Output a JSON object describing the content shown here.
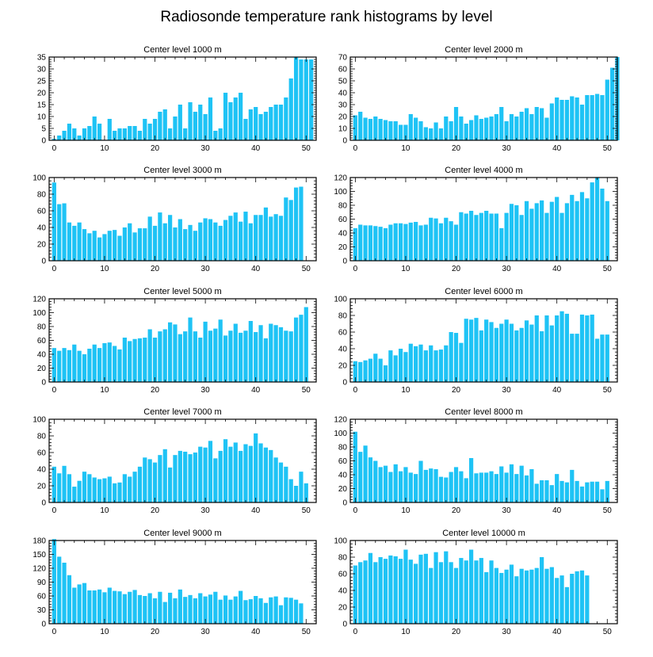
{
  "figure": {
    "title": "Radiosonde temperature rank histograms by level",
    "bar_color": "#1ec3f5",
    "axis_color": "#000000"
  },
  "chart_data": [
    {
      "type": "bar",
      "title": "Center level 1000 m",
      "xlim": [
        -1,
        52
      ],
      "ylim": [
        0,
        35
      ],
      "xticks": [
        0,
        10,
        20,
        30,
        40,
        50
      ],
      "yticks": [
        0,
        5,
        10,
        15,
        20,
        25,
        30,
        35
      ],
      "values": [
        0.6,
        2,
        4,
        7,
        5,
        2,
        5,
        6,
        10,
        7,
        0.2,
        9,
        4,
        5,
        5,
        6,
        6,
        4,
        9,
        7,
        9,
        12,
        13,
        5,
        10,
        15,
        5,
        16,
        12,
        15,
        11,
        18,
        4,
        5,
        20,
        16,
        18,
        20,
        9,
        13,
        14,
        11,
        12,
        14,
        15,
        15,
        18,
        26,
        35,
        34,
        34,
        34
      ]
    },
    {
      "type": "bar",
      "title": "Center level 2000 m",
      "xlim": [
        -1,
        52
      ],
      "ylim": [
        0,
        70
      ],
      "xticks": [
        0,
        10,
        20,
        30,
        40,
        50
      ],
      "yticks": [
        0,
        10,
        20,
        30,
        40,
        50,
        60,
        70
      ],
      "values": [
        21,
        24,
        19,
        18,
        20,
        18,
        17,
        16,
        16,
        13,
        13,
        22,
        19,
        16,
        11,
        10,
        15,
        10,
        20,
        16,
        28,
        20,
        14,
        17,
        21,
        18,
        19,
        20,
        22,
        28,
        16,
        22,
        20,
        24,
        27,
        22,
        28,
        27,
        19,
        31,
        36,
        34,
        34,
        37,
        36,
        30,
        38,
        38,
        39,
        38,
        51,
        61,
        70
      ]
    },
    {
      "type": "bar",
      "title": "Center level 3000 m",
      "xlim": [
        -1,
        52
      ],
      "ylim": [
        0,
        100
      ],
      "xticks": [
        0,
        10,
        20,
        30,
        40,
        50
      ],
      "yticks": [
        0,
        20,
        40,
        60,
        80,
        100
      ],
      "values": [
        94,
        68,
        69,
        46,
        42,
        46,
        38,
        33,
        36,
        28,
        32,
        36,
        37,
        30,
        40,
        45,
        34,
        39,
        39,
        53,
        42,
        58,
        45,
        55,
        40,
        50,
        38,
        43,
        36,
        46,
        51,
        50,
        46,
        42,
        49,
        54,
        58,
        47,
        59,
        45,
        55,
        55,
        64,
        53,
        56,
        54,
        76,
        73,
        88,
        89
      ]
    },
    {
      "type": "bar",
      "title": "Center level 4000 m",
      "xlim": [
        -1,
        52
      ],
      "ylim": [
        0,
        120
      ],
      "xticks": [
        0,
        10,
        20,
        30,
        40,
        50
      ],
      "yticks": [
        0,
        20,
        40,
        60,
        80,
        100,
        120
      ],
      "values": [
        47,
        52,
        51,
        51,
        50,
        49,
        47,
        52,
        54,
        54,
        53,
        55,
        56,
        51,
        52,
        62,
        61,
        54,
        62,
        57,
        52,
        70,
        68,
        72,
        66,
        69,
        72,
        68,
        68,
        47,
        69,
        82,
        80,
        66,
        86,
        75,
        83,
        87,
        69,
        85,
        92,
        69,
        83,
        95,
        86,
        99,
        90,
        113,
        120,
        104,
        86
      ]
    },
    {
      "type": "bar",
      "title": "Center level 5000 m",
      "xlim": [
        -1,
        52
      ],
      "ylim": [
        0,
        120
      ],
      "xticks": [
        0,
        10,
        20,
        30,
        40,
        50
      ],
      "yticks": [
        0,
        20,
        40,
        60,
        80,
        100,
        120
      ],
      "values": [
        49,
        45,
        49,
        46,
        54,
        45,
        40,
        48,
        54,
        49,
        56,
        57,
        52,
        47,
        64,
        59,
        62,
        63,
        64,
        76,
        64,
        73,
        76,
        86,
        83,
        69,
        73,
        93,
        73,
        64,
        87,
        74,
        77,
        90,
        67,
        74,
        84,
        71,
        74,
        88,
        72,
        82,
        63,
        84,
        82,
        79,
        74,
        73,
        93,
        97,
        108
      ]
    },
    {
      "type": "bar",
      "title": "Center level 6000 m",
      "xlim": [
        -1,
        52
      ],
      "ylim": [
        0,
        100
      ],
      "xticks": [
        0,
        10,
        20,
        30,
        40,
        50
      ],
      "yticks": [
        0,
        20,
        40,
        60,
        80,
        100
      ],
      "values": [
        25,
        24,
        26,
        28,
        34,
        28,
        20,
        38,
        32,
        40,
        36,
        46,
        43,
        45,
        38,
        44,
        38,
        39,
        44,
        60,
        59,
        47,
        76,
        75,
        77,
        62,
        75,
        72,
        65,
        70,
        75,
        70,
        62,
        65,
        74,
        69,
        80,
        61,
        80,
        68,
        80,
        85,
        82,
        58,
        58,
        81,
        80,
        81,
        52,
        57,
        57
      ]
    },
    {
      "type": "bar",
      "title": "Center level 7000 m",
      "xlim": [
        -1,
        52
      ],
      "ylim": [
        0,
        100
      ],
      "xticks": [
        0,
        10,
        20,
        30,
        40,
        50
      ],
      "yticks": [
        0,
        20,
        40,
        60,
        80,
        100
      ],
      "values": [
        43,
        35,
        44,
        34,
        19,
        26,
        37,
        34,
        30,
        28,
        29,
        31,
        23,
        24,
        34,
        31,
        37,
        43,
        54,
        52,
        48,
        57,
        64,
        42,
        57,
        62,
        61,
        58,
        60,
        67,
        66,
        74,
        53,
        62,
        76,
        67,
        72,
        62,
        70,
        68,
        83,
        71,
        66,
        63,
        54,
        48,
        43,
        28,
        20,
        37,
        23
      ]
    },
    {
      "type": "bar",
      "title": "Center level 8000 m",
      "xlim": [
        -1,
        52
      ],
      "ylim": [
        0,
        120
      ],
      "xticks": [
        0,
        10,
        20,
        30,
        40,
        50
      ],
      "yticks": [
        0,
        20,
        40,
        60,
        80,
        100,
        120
      ],
      "values": [
        102,
        73,
        82,
        65,
        60,
        51,
        53,
        44,
        55,
        45,
        51,
        43,
        41,
        60,
        47,
        49,
        48,
        37,
        36,
        44,
        51,
        45,
        35,
        64,
        42,
        43,
        43,
        45,
        41,
        52,
        43,
        55,
        41,
        53,
        39,
        48,
        27,
        32,
        32,
        25,
        41,
        31,
        29,
        47,
        31,
        23,
        29,
        30,
        30,
        19,
        31
      ]
    },
    {
      "type": "bar",
      "title": "Center level 9000 m",
      "xlim": [
        -1,
        52
      ],
      "ylim": [
        0,
        180
      ],
      "xticks": [
        0,
        10,
        20,
        30,
        40,
        50
      ],
      "yticks": [
        0,
        30,
        60,
        90,
        120,
        150,
        180
      ],
      "values": [
        183,
        145,
        132,
        105,
        78,
        85,
        88,
        72,
        72,
        74,
        68,
        78,
        71,
        70,
        64,
        69,
        73,
        62,
        60,
        66,
        55,
        69,
        47,
        67,
        55,
        74,
        58,
        62,
        55,
        66,
        59,
        63,
        69,
        52,
        61,
        52,
        59,
        71,
        51,
        53,
        60,
        55,
        45,
        57,
        59,
        40,
        57,
        56,
        52,
        44
      ]
    },
    {
      "type": "bar",
      "title": "Center level 10000 m",
      "xlim": [
        -1,
        52
      ],
      "ylim": [
        0,
        100
      ],
      "xticks": [
        0,
        10,
        20,
        30,
        40,
        50
      ],
      "yticks": [
        0,
        20,
        40,
        60,
        80,
        100
      ],
      "values": [
        70,
        74,
        76,
        85,
        74,
        80,
        78,
        82,
        81,
        78,
        89,
        77,
        72,
        83,
        84,
        67,
        86,
        74,
        87,
        74,
        67,
        79,
        76,
        89,
        76,
        79,
        62,
        76,
        67,
        61,
        65,
        71,
        57,
        66,
        64,
        65,
        67,
        80,
        66,
        68,
        55,
        58,
        44,
        60,
        63,
        64,
        58
      ]
    }
  ]
}
